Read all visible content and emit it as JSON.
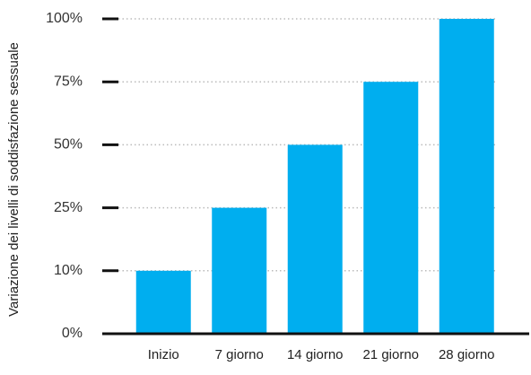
{
  "chart_data": {
    "type": "bar",
    "y_label": "Variazione dei livelli di soddisfazione sessuale",
    "categories": [
      "Inizio",
      "7 giorno",
      "14 giorno",
      "21 giorno",
      "28 giorno"
    ],
    "values": [
      10,
      25,
      50,
      75,
      100
    ],
    "color": "#00aeef",
    "ylim": [
      0,
      100
    ],
    "yticks": [
      {
        "value": 0,
        "label": "0%"
      },
      {
        "value": 10,
        "label": "10%"
      },
      {
        "value": 25,
        "label": "25%"
      },
      {
        "value": 50,
        "label": "50%"
      },
      {
        "value": 75,
        "label": "75%"
      },
      {
        "value": 100,
        "label": "100%"
      }
    ],
    "grid": true
  }
}
